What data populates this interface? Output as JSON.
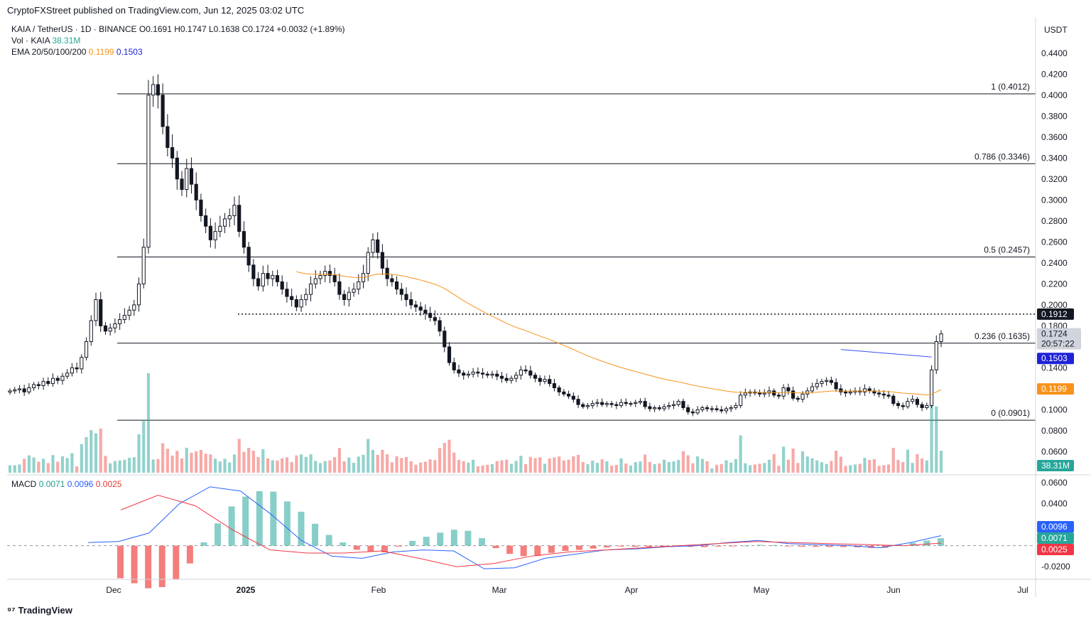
{
  "header": {
    "publisher": "CryptoFXStreet published on TradingView.com, Jun 12, 2025 03:02 UTC"
  },
  "legend": {
    "symbol": "KAIA / TetherUS · 1D · BINANCE",
    "open": "O0.1691",
    "high": "H0.1747",
    "low": "L0.1638",
    "close": "C0.1724",
    "change": "+0.0032 (+1.89%)",
    "vol_label": "Vol · KAIA",
    "vol_value": "38.31M",
    "ema_label": "EMA 20/50/100/200",
    "ema_a": "0.1199",
    "ema_b": "0.1503"
  },
  "macd_legend": {
    "label": "MACD",
    "v1": "0.0071",
    "v2": "0.0096",
    "v3": "0.0025"
  },
  "axis": {
    "currency": "USDT"
  },
  "brand": {
    "name": "TradingView",
    "logo_glyph": "⁹⁷"
  },
  "colors": {
    "up": "#26a69a",
    "down": "#ef5350",
    "ema_orange": "#f7931a",
    "ema_blue": "#3c4ff0",
    "macd": "#2962ff",
    "signal": "#f23645"
  },
  "chart_data": {
    "type": "candlestick",
    "price_ylim": [
      0.04,
      0.45
    ],
    "y_ticks": [
      "0.4400",
      "0.4200",
      "0.4000",
      "0.3800",
      "0.3600",
      "0.3400",
      "0.3200",
      "0.3000",
      "0.2800",
      "0.2600",
      "0.2400",
      "0.2200",
      "0.2000",
      "0.1800",
      "0.1400",
      "0.1000",
      "0.0800",
      "0.0600"
    ],
    "x_ticks": [
      "Dec",
      "2025",
      "Feb",
      "Mar",
      "Apr",
      "May",
      "Jun",
      "Jul"
    ],
    "fib_levels": [
      {
        "label": "1 (0.4012)",
        "value": 0.4012
      },
      {
        "label": "0.786 (0.3346)",
        "value": 0.3346
      },
      {
        "label": "0.5 (0.2457)",
        "value": 0.2457
      },
      {
        "label": "0.236 (0.1635)",
        "value": 0.1635
      },
      {
        "label": "0 (0.0901)",
        "value": 0.0901
      }
    ],
    "dotted_level": {
      "label": "0.1912",
      "value": 0.1912
    },
    "price_labels": [
      {
        "label": "0.1724",
        "sub": "20:57:22",
        "value": 0.1724,
        "kind": "last"
      },
      {
        "label": "0.1503",
        "value": 0.1503,
        "kind": "ema_blue"
      },
      {
        "label": "0.1199",
        "value": 0.1199,
        "kind": "ema_orange"
      },
      {
        "label": "38.31M",
        "kind": "volume"
      }
    ],
    "macd_ylim": [
      -0.03,
      0.062
    ],
    "macd_ticks": [
      "0.0600",
      "0.0400",
      "-0.0200"
    ],
    "macd_labels": [
      {
        "label": "0.0096",
        "kind": "macd"
      },
      {
        "label": "0.0071",
        "kind": "hist"
      },
      {
        "label": "0.0025",
        "kind": "signal"
      }
    ],
    "price_path": [
      0.118,
      0.119,
      0.12,
      0.117,
      0.121,
      0.124,
      0.123,
      0.127,
      0.125,
      0.13,
      0.128,
      0.132,
      0.135,
      0.14,
      0.139,
      0.15,
      0.165,
      0.185,
      0.205,
      0.18,
      0.175,
      0.178,
      0.182,
      0.186,
      0.19,
      0.195,
      0.2,
      0.22,
      0.255,
      0.4,
      0.41,
      0.4,
      0.37,
      0.35,
      0.34,
      0.32,
      0.31,
      0.33,
      0.315,
      0.3,
      0.285,
      0.275,
      0.262,
      0.27,
      0.275,
      0.282,
      0.285,
      0.295,
      0.27,
      0.255,
      0.238,
      0.225,
      0.218,
      0.23,
      0.225,
      0.228,
      0.222,
      0.215,
      0.208,
      0.205,
      0.198,
      0.205,
      0.21,
      0.22,
      0.225,
      0.228,
      0.232,
      0.228,
      0.222,
      0.21,
      0.205,
      0.212,
      0.215,
      0.222,
      0.23,
      0.25,
      0.262,
      0.25,
      0.235,
      0.225,
      0.222,
      0.215,
      0.21,
      0.205,
      0.2,
      0.198,
      0.195,
      0.192,
      0.188,
      0.185,
      0.175,
      0.16,
      0.145,
      0.138,
      0.135,
      0.133,
      0.134,
      0.136,
      0.135,
      0.134,
      0.133,
      0.134,
      0.132,
      0.13,
      0.128,
      0.13,
      0.133,
      0.138,
      0.137,
      0.133,
      0.13,
      0.127,
      0.129,
      0.125,
      0.121,
      0.117,
      0.115,
      0.113,
      0.11,
      0.105,
      0.103,
      0.104,
      0.106,
      0.107,
      0.105,
      0.106,
      0.105,
      0.104,
      0.107,
      0.106,
      0.106,
      0.107,
      0.108,
      0.103,
      0.101,
      0.102,
      0.101,
      0.103,
      0.104,
      0.105,
      0.108,
      0.102,
      0.098,
      0.097,
      0.1,
      0.102,
      0.101,
      0.101,
      0.1,
      0.099,
      0.101,
      0.102,
      0.104,
      0.114,
      0.116,
      0.117,
      0.116,
      0.115,
      0.116,
      0.118,
      0.114,
      0.113,
      0.121,
      0.118,
      0.111,
      0.11,
      0.115,
      0.118,
      0.122,
      0.125,
      0.127,
      0.128,
      0.126,
      0.12,
      0.117,
      0.116,
      0.117,
      0.118,
      0.117,
      0.12,
      0.118,
      0.116,
      0.115,
      0.114,
      0.113,
      0.106,
      0.104,
      0.103,
      0.108,
      0.11,
      0.105,
      0.102,
      0.104,
      0.138,
      0.165,
      0.1724
    ],
    "ema_orange": [
      [
        0.2,
        0.18
      ],
      [
        0.18,
        0.205
      ],
      [
        0.1,
        0.215
      ],
      [
        0.0,
        0.212
      ],
      [
        -0.1,
        0.196
      ],
      [
        -0.2,
        0.18
      ],
      [
        -0.3,
        0.16
      ],
      [
        -0.4,
        0.146
      ],
      [
        -0.5,
        0.133
      ],
      [
        -0.6,
        0.122
      ],
      [
        -0.7,
        0.113
      ],
      [
        -0.8,
        0.108
      ],
      [
        -0.9,
        0.106
      ],
      [
        -1.0,
        0.107
      ],
      [
        -1.1,
        0.109
      ],
      [
        -1.2,
        0.11
      ],
      [
        -1.28,
        0.1199
      ]
    ],
    "ema_blue": [
      [
        0.1575,
        0.1575
      ],
      [
        0.1503,
        0.1503
      ]
    ],
    "macd_line": [
      0.003,
      0.004,
      0.012,
      0.04,
      0.056,
      0.052,
      0.03,
      0.005,
      -0.01,
      -0.012,
      -0.006,
      -0.004,
      -0.005,
      -0.022,
      -0.021,
      -0.012,
      -0.008,
      -0.004,
      -0.003,
      -0.001,
      0.0,
      0.003,
      0.005,
      0.002,
      0.001,
      0.0,
      -0.002,
      0.003,
      0.0096
    ],
    "signal_line": [
      0.034,
      0.048,
      0.038,
      0.015,
      -0.004,
      -0.007,
      -0.007,
      -0.005,
      -0.012,
      -0.02,
      -0.017,
      -0.01,
      -0.006,
      -0.004,
      -0.002,
      0.0,
      0.002,
      0.004,
      0.003,
      0.002,
      0.001,
      0.0,
      0.0025
    ]
  }
}
